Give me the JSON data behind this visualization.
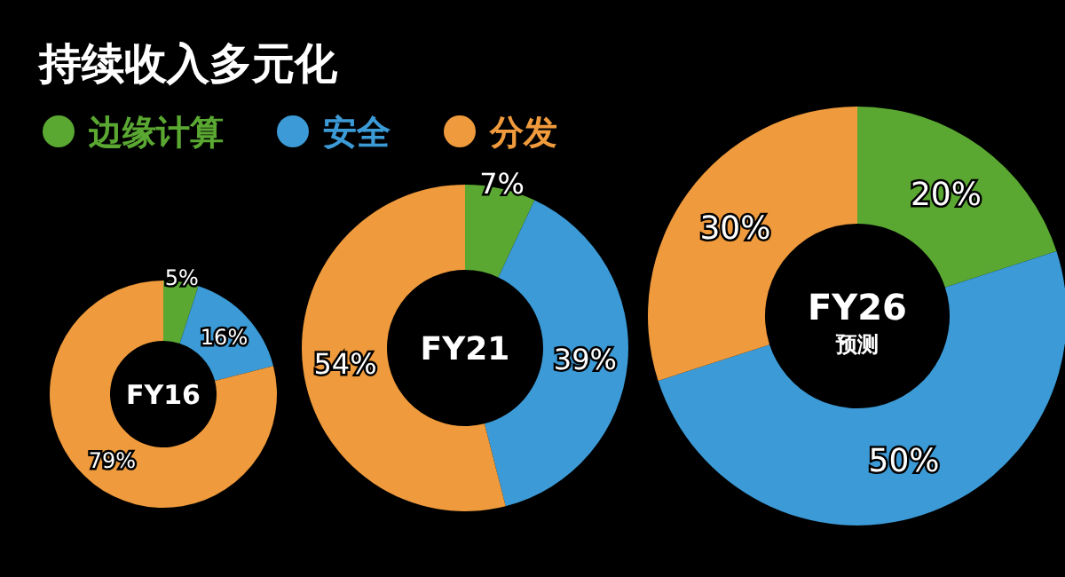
{
  "chart_data": [
    {
      "type": "donut",
      "title": "持续收入多元化",
      "legend": "top",
      "categories": [
        "边缘计算",
        "安全",
        "分发"
      ],
      "values": [
        5,
        16,
        79
      ],
      "value_labels": [
        "5%",
        "16%",
        "79%"
      ],
      "colors": [
        "#5aa832",
        "#3c9ad6",
        "#ef9a3c"
      ],
      "annotations": [
        "FY16"
      ]
    },
    {
      "type": "donut",
      "values": [
        7,
        39,
        54
      ],
      "value_labels": [
        "7%",
        "39%",
        "54%"
      ],
      "colors": [
        "#5aa832",
        "#3c9ad6",
        "#ef9a3c"
      ],
      "annotations": [
        "FY21"
      ]
    },
    {
      "type": "donut",
      "values": [
        20,
        50,
        30
      ],
      "value_labels": [
        "20%",
        "50%",
        "30%"
      ],
      "colors": [
        "#5aa832",
        "#3c9ad6",
        "#ef9a3c"
      ],
      "annotations": [
        "FY26",
        "预测"
      ]
    }
  ]
}
